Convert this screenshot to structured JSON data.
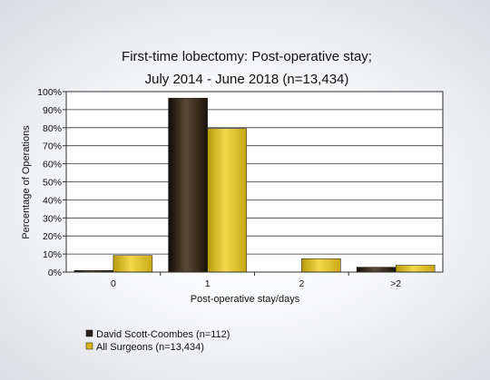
{
  "chart_data": {
    "type": "bar",
    "title": "First-time lobectomy: Post-operative stay;",
    "subtitle": "July 2014 - June 2018 (n=13,434)",
    "xlabel": "Post-operative stay/days",
    "ylabel": "Percentage of Operations",
    "ylim": [
      0,
      100
    ],
    "yticks": [
      "0%",
      "10%",
      "20%",
      "30%",
      "40%",
      "50%",
      "60%",
      "70%",
      "80%",
      "90%",
      "100%"
    ],
    "categories": [
      "0",
      "1",
      "2",
      ">2"
    ],
    "series": [
      {
        "name": "David Scott-Coombes (n=112)",
        "values": [
          0.9,
          96.4,
          0.0,
          2.7
        ],
        "color": "#2a2018"
      },
      {
        "name": "All Surgeons (n=13,434)",
        "values": [
          9.2,
          79.5,
          7.4,
          3.8
        ],
        "color": "#d4b419"
      }
    ],
    "grid": true,
    "legend_position": "bottom-left"
  }
}
